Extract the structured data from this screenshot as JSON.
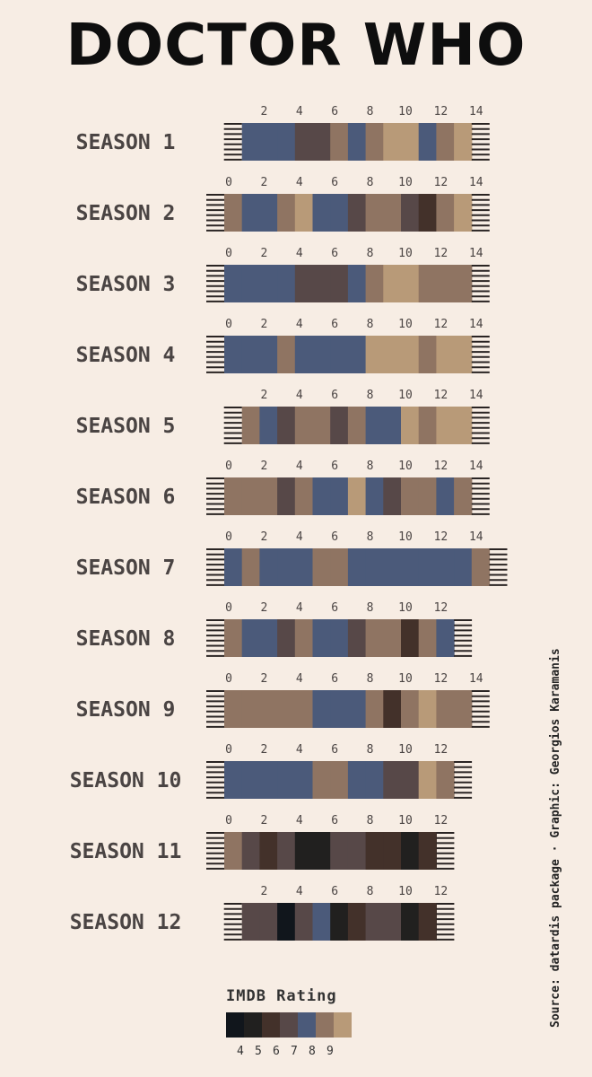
{
  "header": {
    "title": "DOCTOR WHO"
  },
  "source": "Source: datardis package · Graphic: Georgios Karamanis",
  "legend": {
    "title": "IMDB Rating",
    "levels": [
      4,
      4.5,
      5,
      5.5,
      6,
      6.5,
      7,
      7.5,
      8,
      8.5
    ],
    "ticks": [
      "4",
      "5",
      "6",
      "7",
      "8",
      "9"
    ],
    "colors": [
      "#11161c",
      "#21201f",
      "#43312a",
      "#574848",
      "#4b5a7a",
      "#8f7462",
      "#b89a78"
    ]
  },
  "chart_data": {
    "type": "heatmap",
    "title": "DOCTOR WHO",
    "xlabel": "",
    "ylabel": "",
    "color_label": "IMDB Rating",
    "x_ticks": [
      0,
      2,
      4,
      6,
      8,
      10,
      12,
      14
    ],
    "color_scale": [
      {
        "color": "#11161c",
        "rating": 4
      },
      {
        "color": "#21201f",
        "rating": 5
      },
      {
        "color": "#43312a",
        "rating": 5.5
      },
      {
        "color": "#574848",
        "rating": 6
      },
      {
        "color": "#4b5a7a",
        "rating": 6.7
      },
      {
        "color": "#8f7462",
        "rating": 7.3
      },
      {
        "color": "#b89a78",
        "rating": 8
      }
    ],
    "seasons": [
      {
        "label": "SEASON 1",
        "start": 1,
        "ratings": [
          6.7,
          6.7,
          6.7,
          6,
          6,
          7.3,
          6.7,
          7.3,
          8,
          8,
          6.7,
          7.3,
          8
        ]
      },
      {
        "label": "SEASON 2",
        "start": 0,
        "ratings": [
          7.3,
          6.7,
          6.7,
          7.3,
          8,
          6.7,
          6.7,
          6,
          7.3,
          7.3,
          6,
          5.5,
          7.3,
          8
        ]
      },
      {
        "label": "SEASON 3",
        "start": 0,
        "ratings": [
          6.7,
          6.7,
          6.7,
          6.7,
          6,
          6,
          6,
          6.7,
          7.3,
          8,
          8,
          7.3,
          7.3,
          7.3
        ]
      },
      {
        "label": "SEASON 4",
        "start": 0,
        "ratings": [
          6.7,
          6.7,
          6.7,
          7.3,
          6.7,
          6.7,
          6.7,
          6.7,
          8,
          8,
          8,
          7.3,
          8,
          8
        ]
      },
      {
        "label": "SEASON 5",
        "start": 1,
        "ratings": [
          7.3,
          6.7,
          6,
          7.3,
          7.3,
          6,
          7.3,
          6.7,
          6.7,
          8,
          7.3,
          8,
          8
        ]
      },
      {
        "label": "SEASON 6",
        "start": 0,
        "ratings": [
          7.3,
          7.3,
          7.3,
          6,
          7.3,
          6.7,
          6.7,
          8,
          6.7,
          6,
          7.3,
          7.3,
          6.7,
          7.3
        ]
      },
      {
        "label": "SEASON 7",
        "start": 0,
        "ratings": [
          6.7,
          7.3,
          6.7,
          6.7,
          6.7,
          7.3,
          7.3,
          6.7,
          6.7,
          6.7,
          6.7,
          6.7,
          6.7,
          6.7,
          7.3
        ]
      },
      {
        "label": "SEASON 8",
        "start": 0,
        "ratings": [
          7.3,
          6.7,
          6.7,
          6,
          7.3,
          6.7,
          6.7,
          6,
          7.3,
          7.3,
          5.5,
          7.3,
          6.7
        ]
      },
      {
        "label": "SEASON 9",
        "start": 0,
        "ratings": [
          7.3,
          7.3,
          7.3,
          7.3,
          7.3,
          6.7,
          6.7,
          6.7,
          7.3,
          5.5,
          7.3,
          8,
          7.3,
          7.3
        ]
      },
      {
        "label": "SEASON 10",
        "start": 0,
        "ratings": [
          6.7,
          6.7,
          6.7,
          6.7,
          6.7,
          7.3,
          7.3,
          6.7,
          6.7,
          6,
          6,
          8,
          7.3
        ]
      },
      {
        "label": "SEASON 11",
        "start": 0,
        "ratings": [
          7.3,
          6,
          5.5,
          6,
          5,
          5,
          6,
          6,
          5.5,
          5.5,
          5,
          5.5
        ]
      },
      {
        "label": "SEASON 12",
        "start": 1,
        "ratings": [
          6,
          6,
          4,
          6,
          6.7,
          5,
          5.5,
          6,
          6,
          5,
          5.5
        ]
      }
    ]
  }
}
